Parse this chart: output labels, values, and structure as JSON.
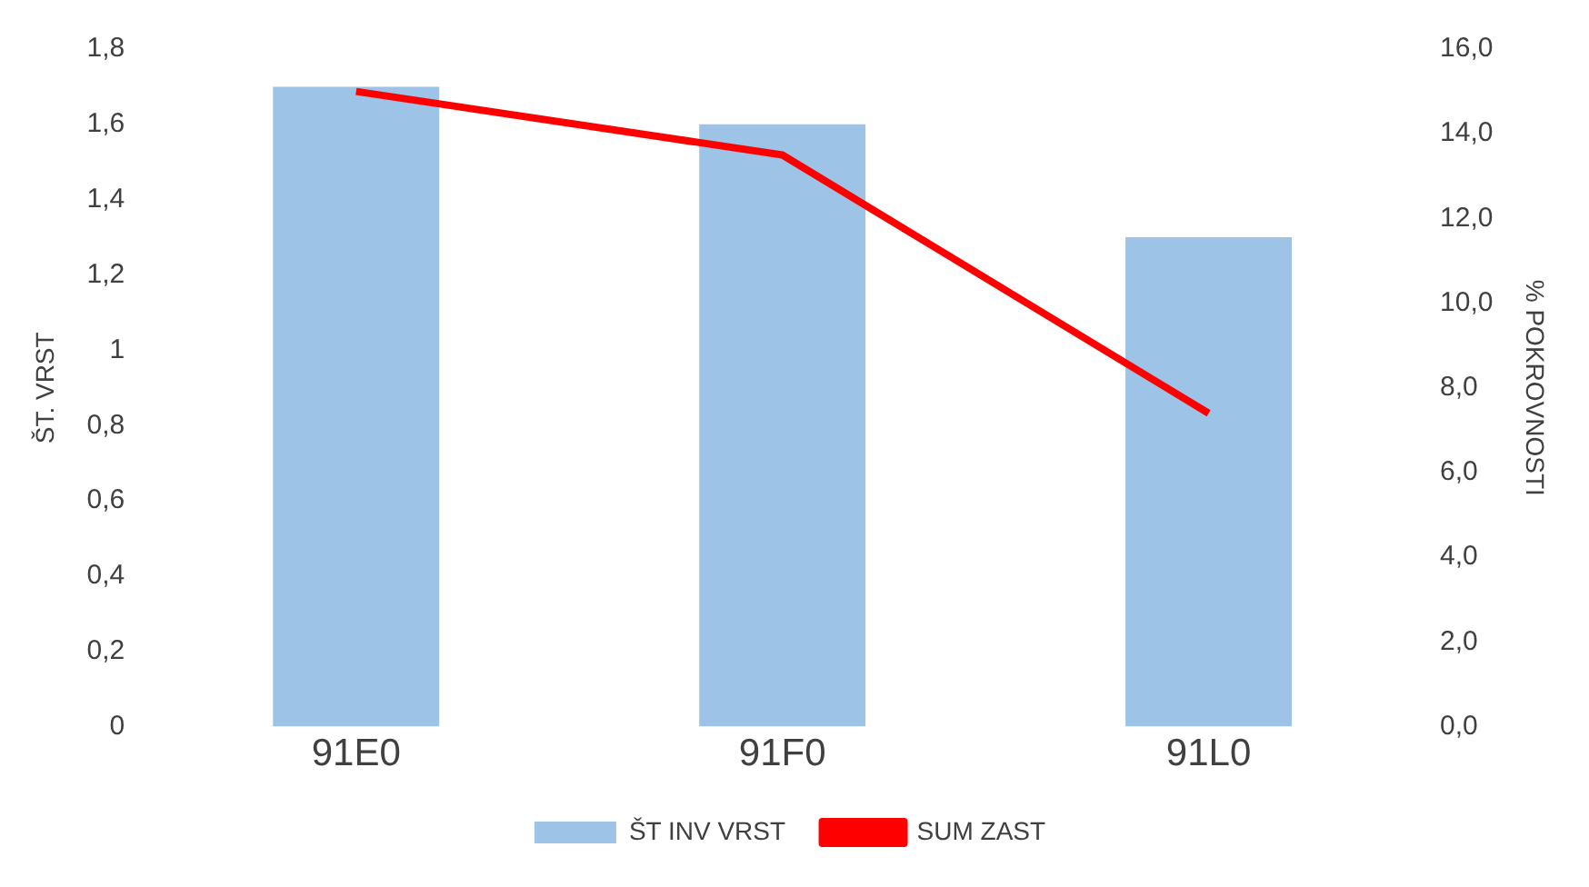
{
  "chart_data": {
    "type": "bar",
    "ylabel": "ŠT. VRST",
    "y2label": "% POKROVNOSTI",
    "categories": [
      "91E0",
      "91F0",
      "91L0"
    ],
    "series": [
      {
        "name": "ŠT INV VRST",
        "color": "#9dc3e6",
        "values": [
          1.7,
          1.6,
          1.3
        ]
      },
      {
        "name": "SUM ZAST",
        "type": "line",
        "axis": "y2",
        "color": "#ff0000",
        "values": [
          15.0,
          13.5,
          7.4
        ]
      }
    ],
    "ylim": [
      0,
      1.8
    ],
    "yticks": [
      0,
      {
        "value": 0.2,
        "label": "0,2"
      },
      {
        "value": 0.4,
        "label": "0,4"
      },
      {
        "value": 0.6,
        "label": "0,6"
      },
      {
        "value": 0.8,
        "label": "0,8"
      },
      1,
      {
        "value": 1.2,
        "label": "1,2"
      },
      {
        "value": 1.4,
        "label": "1,4"
      },
      {
        "value": 1.6,
        "label": "1,6"
      },
      {
        "value": 1.8,
        "label": "1,8"
      }
    ],
    "y2lim": [
      0,
      16
    ],
    "y2ticks": [
      {
        "value": 0,
        "label": "0,0"
      },
      {
        "value": 2,
        "label": "2,0"
      },
      {
        "value": 4,
        "label": "4,0"
      },
      {
        "value": 6,
        "label": "6,0"
      },
      {
        "value": 8,
        "label": "8,0"
      },
      {
        "value": 10,
        "label": "10,0"
      },
      {
        "value": 12,
        "label": "12,0"
      },
      {
        "value": 14,
        "label": "14,0"
      },
      {
        "value": 16,
        "label": "16,0"
      }
    ],
    "legend": "bottom",
    "marker": "none"
  }
}
